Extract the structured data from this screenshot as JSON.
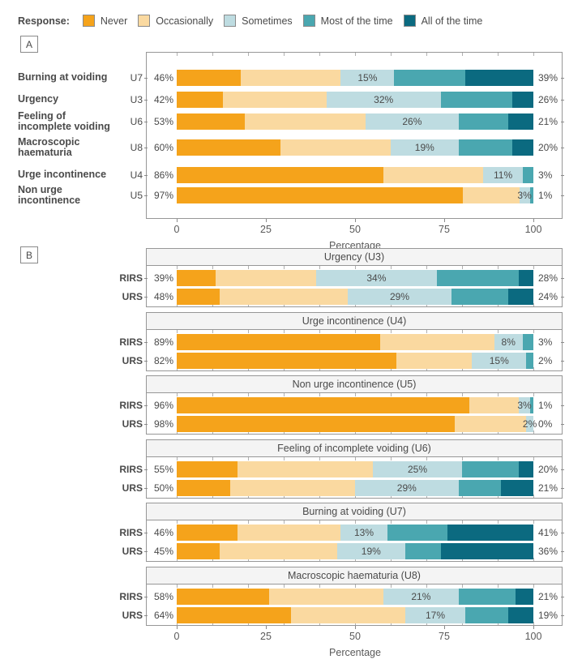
{
  "legend": {
    "title": "Response:",
    "items": [
      {
        "label": "Never",
        "color": "#F5A31B"
      },
      {
        "label": "Occasionally",
        "color": "#FAD9A0"
      },
      {
        "label": "Sometimes",
        "color": "#BEDCE1"
      },
      {
        "label": "Most of the time",
        "color": "#4AA7B0"
      },
      {
        "label": "All of the time",
        "color": "#0B6A80"
      }
    ]
  },
  "panels": {
    "a_label": "A",
    "b_label": "B"
  },
  "axis": {
    "tick_labels": [
      "0",
      "25",
      "50",
      "75",
      "100"
    ],
    "tick_values": [
      0,
      25,
      50,
      75,
      100
    ],
    "label": "Percentage"
  },
  "chart_data": [
    {
      "panel": "A",
      "type": "bar",
      "stacked": true,
      "orientation": "horizontal",
      "x_range": [
        0,
        100
      ],
      "x_ticks": [
        0,
        25,
        50,
        75,
        100
      ],
      "xlabel": "Percentage",
      "legend_position": "top",
      "series_names": [
        "Never",
        "Occasionally",
        "Sometimes",
        "Most of the time",
        "All of the time"
      ],
      "rows": [
        {
          "category": "Burning at voiding",
          "code": "U7",
          "left_label": "46%",
          "mid_label": "15%",
          "right_label": "39%",
          "values": [
            18,
            28,
            15,
            20,
            19
          ]
        },
        {
          "category": "Urgency",
          "code": "U3",
          "left_label": "42%",
          "mid_label": "32%",
          "right_label": "26%",
          "values": [
            13,
            29,
            32,
            20,
            6
          ]
        },
        {
          "category": "Feeling of incomplete voiding",
          "code": "U6",
          "left_label": "53%",
          "mid_label": "26%",
          "right_label": "21%",
          "values": [
            19,
            34,
            26,
            14,
            7
          ]
        },
        {
          "category": "Macroscopic haematuria",
          "code": "U8",
          "left_label": "60%",
          "mid_label": "19%",
          "right_label": "20%",
          "values": [
            29,
            31,
            19,
            15,
            6
          ]
        },
        {
          "category": "Urge incontinence",
          "code": "U4",
          "left_label": "86%",
          "mid_label": "11%",
          "right_label": "3%",
          "values": [
            58,
            28,
            11,
            3,
            0
          ]
        },
        {
          "category": "Non urge incontinence",
          "code": "U5",
          "left_label": "97%",
          "mid_label": "3%",
          "right_label": "1%",
          "values": [
            81,
            16,
            3,
            1,
            0
          ]
        }
      ]
    },
    {
      "panel": "B",
      "type": "bar",
      "stacked": true,
      "orientation": "horizontal",
      "x_range": [
        0,
        100
      ],
      "x_ticks": [
        0,
        25,
        50,
        75,
        100
      ],
      "xlabel": "Percentage",
      "series_names": [
        "Never",
        "Occasionally",
        "Sometimes",
        "Most of the time",
        "All of the time"
      ],
      "subplots": [
        {
          "title": "Urgency (U3)",
          "rows": [
            {
              "group": "RIRS",
              "left_label": "39%",
              "mid_label": "34%",
              "right_label": "28%",
              "values": [
                11,
                28,
                34,
                23,
                4
              ]
            },
            {
              "group": "URS",
              "left_label": "48%",
              "mid_label": "29%",
              "right_label": "24%",
              "values": [
                12,
                36,
                29,
                16,
                7
              ]
            }
          ]
        },
        {
          "title": "Urge incontinence (U4)",
          "rows": [
            {
              "group": "RIRS",
              "left_label": "89%",
              "mid_label": "8%",
              "right_label": "3%",
              "values": [
                57,
                32,
                8,
                3,
                0
              ]
            },
            {
              "group": "URS",
              "left_label": "82%",
              "mid_label": "15%",
              "right_label": "2%",
              "values": [
                61,
                21,
                15,
                2,
                0
              ]
            }
          ]
        },
        {
          "title": "Non urge incontinence (U5)",
          "rows": [
            {
              "group": "RIRS",
              "left_label": "96%",
              "mid_label": "3%",
              "right_label": "1%",
              "values": [
                82,
                14,
                3,
                1,
                0
              ]
            },
            {
              "group": "URS",
              "left_label": "98%",
              "mid_label": "2%",
              "right_label": "0%",
              "values": [
                78,
                20,
                2,
                0,
                0
              ]
            }
          ]
        },
        {
          "title": "Feeling of incomplete voiding (U6)",
          "rows": [
            {
              "group": "RIRS",
              "left_label": "55%",
              "mid_label": "25%",
              "right_label": "20%",
              "values": [
                17,
                38,
                25,
                16,
                4
              ]
            },
            {
              "group": "URS",
              "left_label": "50%",
              "mid_label": "29%",
              "right_label": "21%",
              "values": [
                15,
                35,
                29,
                12,
                9
              ]
            }
          ]
        },
        {
          "title": "Burning at voiding (U7)",
          "rows": [
            {
              "group": "RIRS",
              "left_label": "46%",
              "mid_label": "13%",
              "right_label": "41%",
              "values": [
                17,
                29,
                13,
                17,
                24
              ]
            },
            {
              "group": "URS",
              "left_label": "45%",
              "mid_label": "19%",
              "right_label": "36%",
              "values": [
                12,
                33,
                19,
                10,
                26
              ]
            }
          ]
        },
        {
          "title": "Macroscopic haematuria (U8)",
          "rows": [
            {
              "group": "RIRS",
              "left_label": "58%",
              "mid_label": "21%",
              "right_label": "21%",
              "values": [
                26,
                32,
                21,
                16,
                5
              ]
            },
            {
              "group": "URS",
              "left_label": "64%",
              "mid_label": "17%",
              "right_label": "19%",
              "values": [
                32,
                32,
                17,
                12,
                7
              ]
            }
          ]
        }
      ]
    }
  ]
}
